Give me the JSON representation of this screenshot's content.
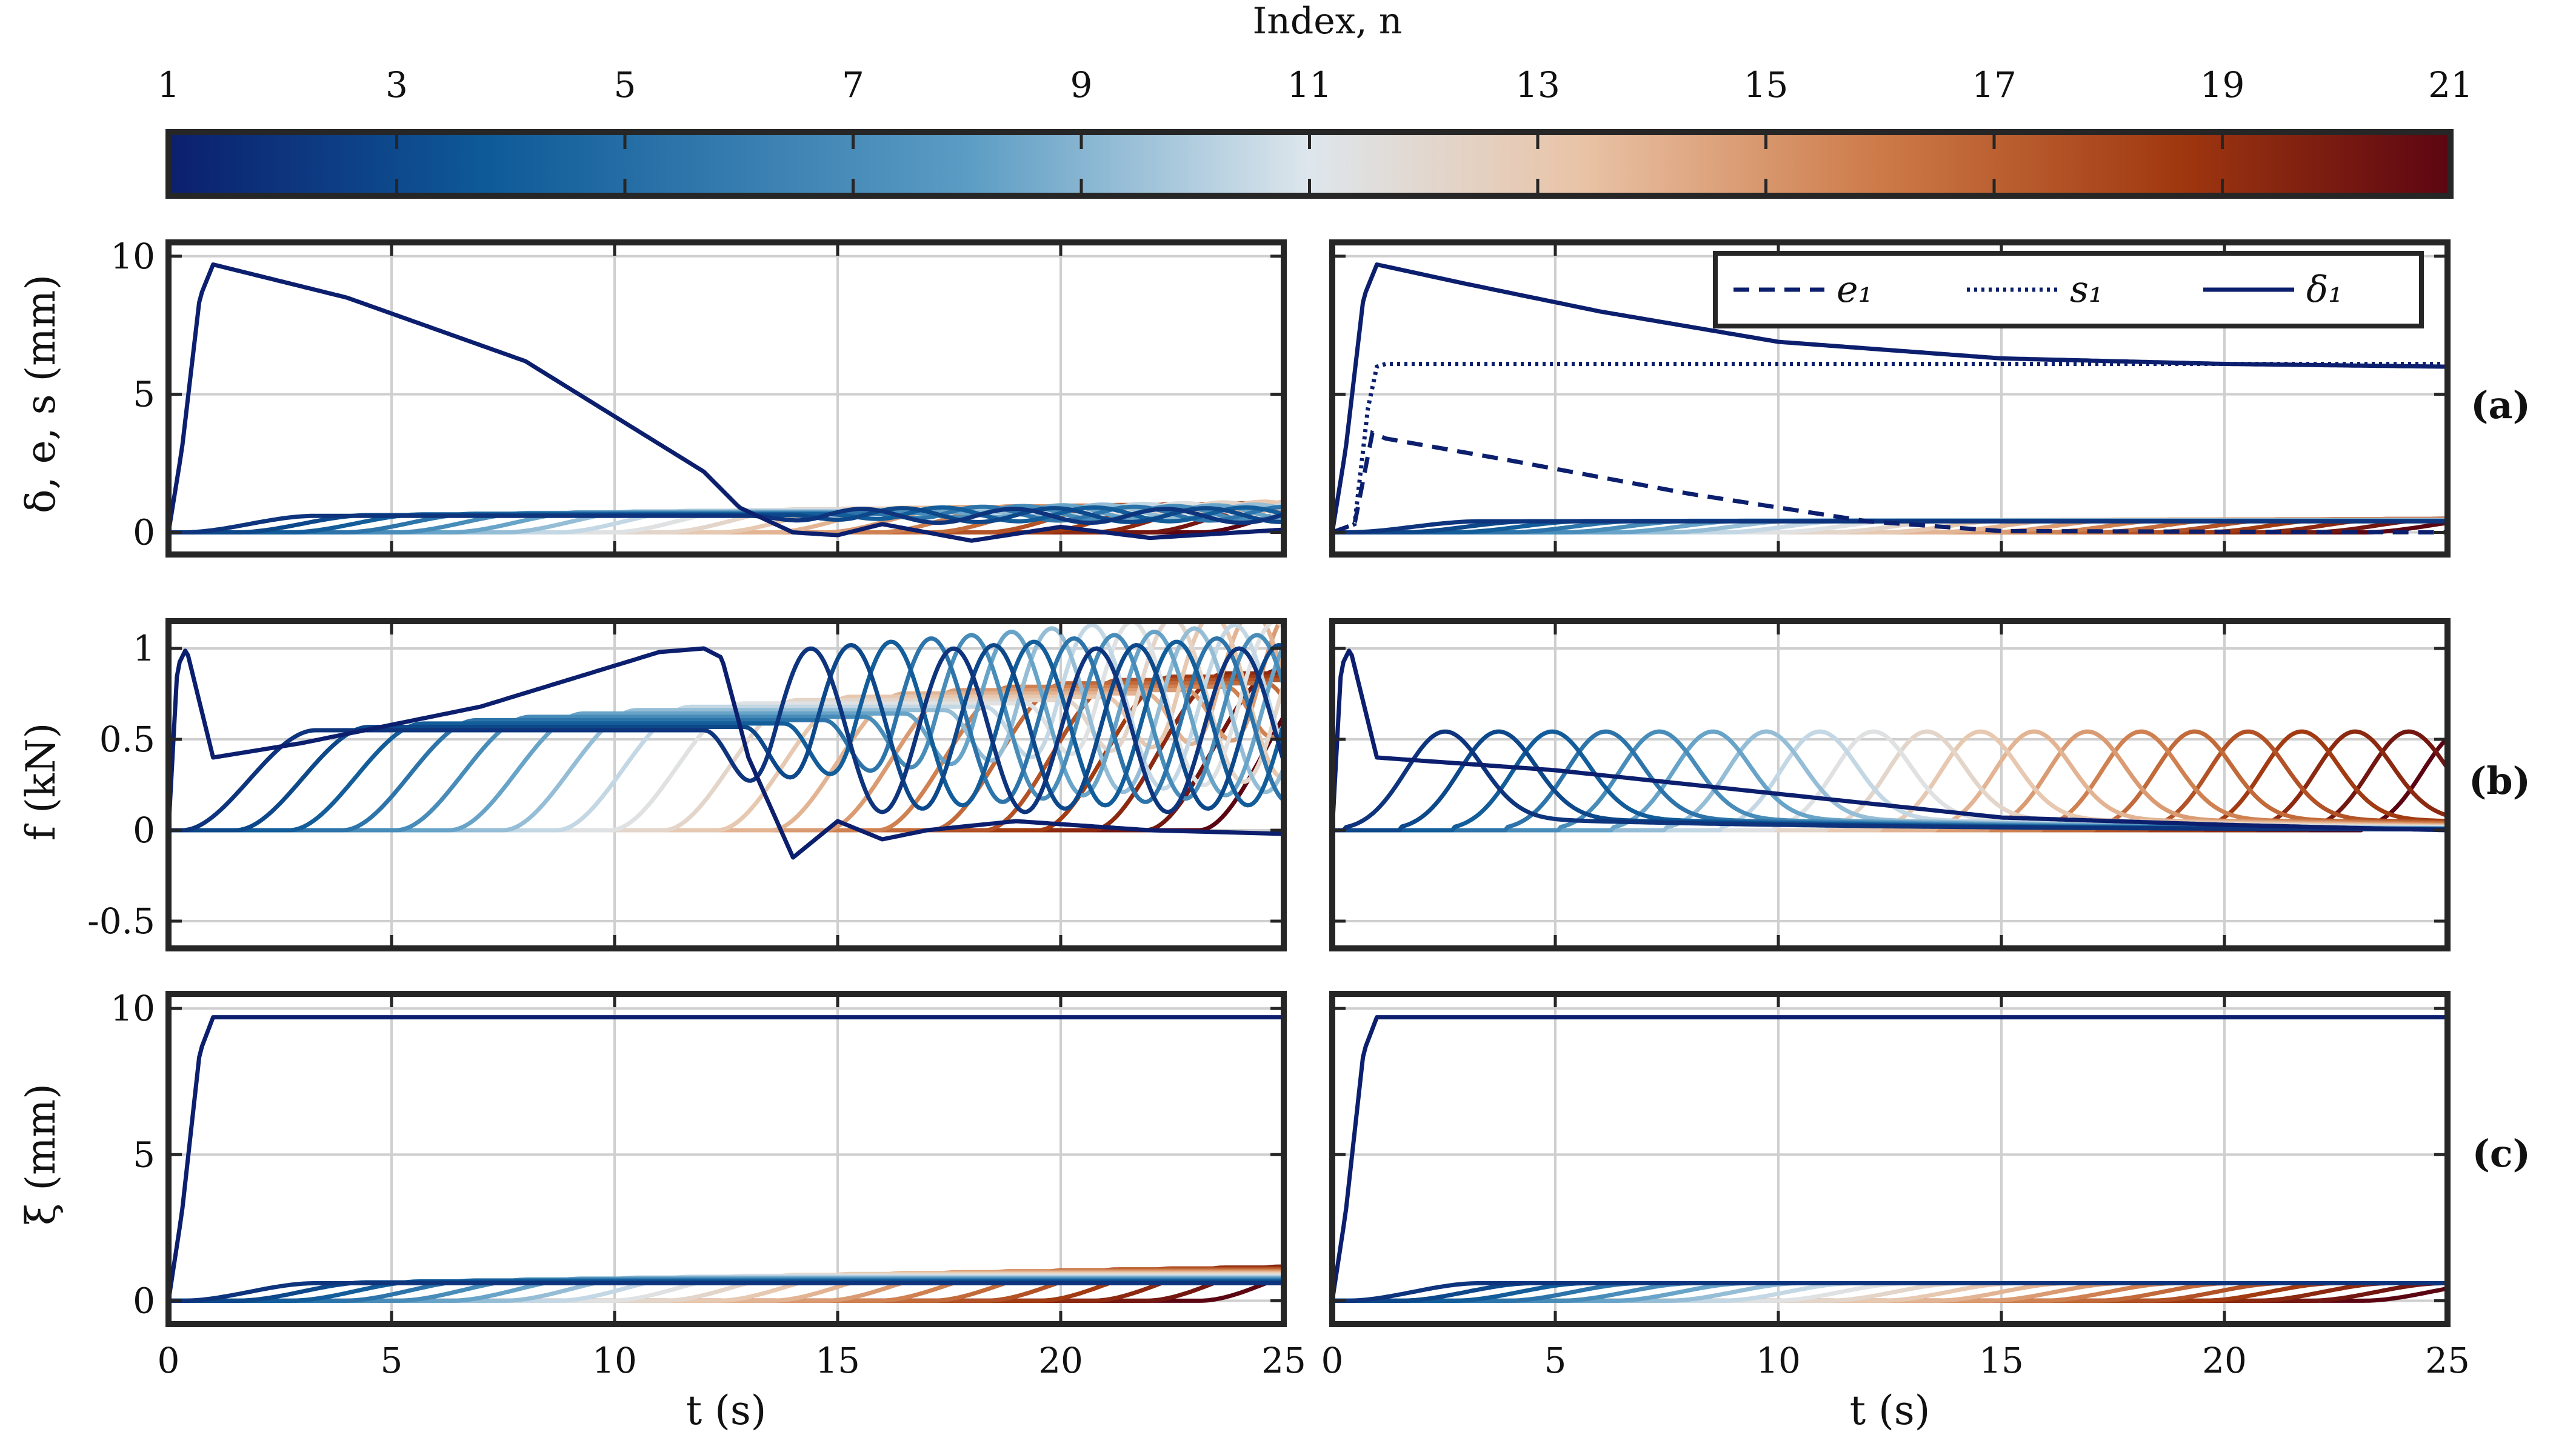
{
  "colorbar": {
    "title": "Index, n",
    "ticks": [
      "1",
      "3",
      "5",
      "7",
      "9",
      "11",
      "13",
      "15",
      "17",
      "19",
      "21"
    ],
    "colormap": [
      "#0c1f6e",
      "#0e5a98",
      "#5b9cc4",
      "#dde6ec",
      "#e9c3a6",
      "#cd7a48",
      "#a0380f",
      "#5c0512"
    ]
  },
  "shared": {
    "xlabel": "t (s)",
    "xticks": [
      "0",
      "5",
      "10",
      "15",
      "20",
      "25"
    ],
    "row_tags": [
      "(a)",
      "(b)",
      "(c)"
    ]
  },
  "rows": [
    {
      "ylabel": "δ, e, s (mm)",
      "yticks": [
        "0",
        "5",
        "10"
      ]
    },
    {
      "ylabel": "f (kN)",
      "yticks": [
        "-0.5",
        "0",
        "0.5",
        "1"
      ]
    },
    {
      "ylabel": "ξ (mm)",
      "yticks": [
        "0",
        "5",
        "10"
      ]
    }
  ],
  "legend": {
    "e": "e₁",
    "s": "s₁",
    "delta": "δ₁"
  },
  "chart_data": {
    "type": "line",
    "x_range": [
      0,
      25
    ],
    "n_range": [
      1,
      21
    ],
    "panels": [
      {
        "id": "a-left",
        "row": 0,
        "col": 0,
        "ylim": [
          -0.8,
          10.5
        ],
        "lead": [
          [
            0,
            0
          ],
          [
            0.3,
            3
          ],
          [
            0.7,
            8.5
          ],
          [
            1.0,
            9.7
          ],
          [
            4,
            8.5
          ],
          [
            8,
            6.2
          ],
          [
            12,
            2.2
          ],
          [
            12.8,
            0.9
          ],
          [
            14,
            0.0
          ],
          [
            15,
            -0.1
          ],
          [
            16,
            0.3
          ],
          [
            18,
            -0.3
          ],
          [
            20,
            0.2
          ],
          [
            22,
            -0.2
          ],
          [
            25,
            0.1
          ]
        ],
        "onset_step": 1.2,
        "decay": 0.3,
        "amp": [
          0.6,
          1.1
        ],
        "osc": 0.25,
        "period": 3.4,
        "late": 13
      },
      {
        "id": "a-right",
        "row": 0,
        "col": 1,
        "ylim": [
          -0.8,
          10.5
        ],
        "lead": [
          [
            0,
            0
          ],
          [
            0.3,
            3
          ],
          [
            0.7,
            8.5
          ],
          [
            1.0,
            9.7
          ],
          [
            3,
            9.0
          ],
          [
            6,
            8.0
          ],
          [
            10,
            6.9
          ],
          [
            15,
            6.3
          ],
          [
            20,
            6.1
          ],
          [
            25,
            6.0
          ]
        ],
        "aux_s": [
          [
            0,
            0
          ],
          [
            0.5,
            0.3
          ],
          [
            0.8,
            4.5
          ],
          [
            1.0,
            6.0
          ],
          [
            1.2,
            6.1
          ],
          [
            25,
            6.1
          ]
        ],
        "aux_e": [
          [
            0,
            0
          ],
          [
            0.5,
            0.3
          ],
          [
            0.9,
            3.6
          ],
          [
            1.2,
            3.4
          ],
          [
            4,
            2.6
          ],
          [
            8,
            1.4
          ],
          [
            12,
            0.4
          ],
          [
            15,
            0.05
          ],
          [
            25,
            0.0
          ]
        ],
        "onset_step": 1.2,
        "decay": 0.55,
        "amp": [
          0.4,
          0.5
        ],
        "osc": 0.0,
        "period": 3.4,
        "late": 99
      },
      {
        "id": "b-left",
        "row": 1,
        "col": 0,
        "ylim": [
          -0.65,
          1.15
        ],
        "lead": [
          [
            0,
            0
          ],
          [
            0.2,
            0.9
          ],
          [
            0.4,
            1.0
          ],
          [
            0.7,
            0.7
          ],
          [
            1.0,
            0.4
          ],
          [
            3,
            0.48
          ],
          [
            7,
            0.68
          ],
          [
            11,
            0.98
          ],
          [
            12,
            1.0
          ],
          [
            12.4,
            0.95
          ],
          [
            13,
            0.4
          ],
          [
            14,
            -0.15
          ],
          [
            15,
            0.05
          ],
          [
            16,
            -0.05
          ],
          [
            17,
            0.0
          ],
          [
            19,
            0.05
          ],
          [
            22,
            0.0
          ],
          [
            25,
            -0.02
          ]
        ],
        "onset_step": 1.2,
        "decay": 0.9,
        "amp": [
          0.55,
          0.9
        ],
        "osc": 0.45,
        "period": 3.2,
        "late": 12
      },
      {
        "id": "b-right",
        "row": 1,
        "col": 1,
        "ylim": [
          -0.65,
          1.15
        ],
        "lead": [
          [
            0,
            0
          ],
          [
            0.2,
            0.9
          ],
          [
            0.4,
            1.0
          ],
          [
            0.7,
            0.7
          ],
          [
            1.0,
            0.4
          ],
          [
            5,
            0.33
          ],
          [
            10,
            0.2
          ],
          [
            15,
            0.07
          ],
          [
            20,
            0.03
          ],
          [
            25,
            0.0
          ]
        ],
        "onset_step": 1.2,
        "decay": 0.9,
        "amp": [
          0.48,
          0.48
        ],
        "osc": 0.0,
        "period": 3.2,
        "late": 99
      },
      {
        "id": "c-left",
        "row": 2,
        "col": 0,
        "ylim": [
          -0.8,
          10.5
        ],
        "lead": [
          [
            0,
            0
          ],
          [
            0.3,
            3
          ],
          [
            0.7,
            8.5
          ],
          [
            1.0,
            9.7
          ],
          [
            25,
            9.7
          ]
        ],
        "onset_step": 1.2,
        "decay": 0.25,
        "amp": [
          0.6,
          1.2
        ],
        "osc": 0.0,
        "period": 3.4,
        "late": 99
      },
      {
        "id": "c-right",
        "row": 2,
        "col": 1,
        "ylim": [
          -0.8,
          10.5
        ],
        "lead": [
          [
            0,
            0
          ],
          [
            0.3,
            3
          ],
          [
            0.7,
            8.5
          ],
          [
            1.0,
            9.7
          ],
          [
            25,
            9.7
          ]
        ],
        "onset_step": 1.2,
        "decay": 0.25,
        "amp": [
          0.6,
          0.6
        ],
        "osc": 0.0,
        "period": 3.4,
        "late": 99
      }
    ]
  }
}
